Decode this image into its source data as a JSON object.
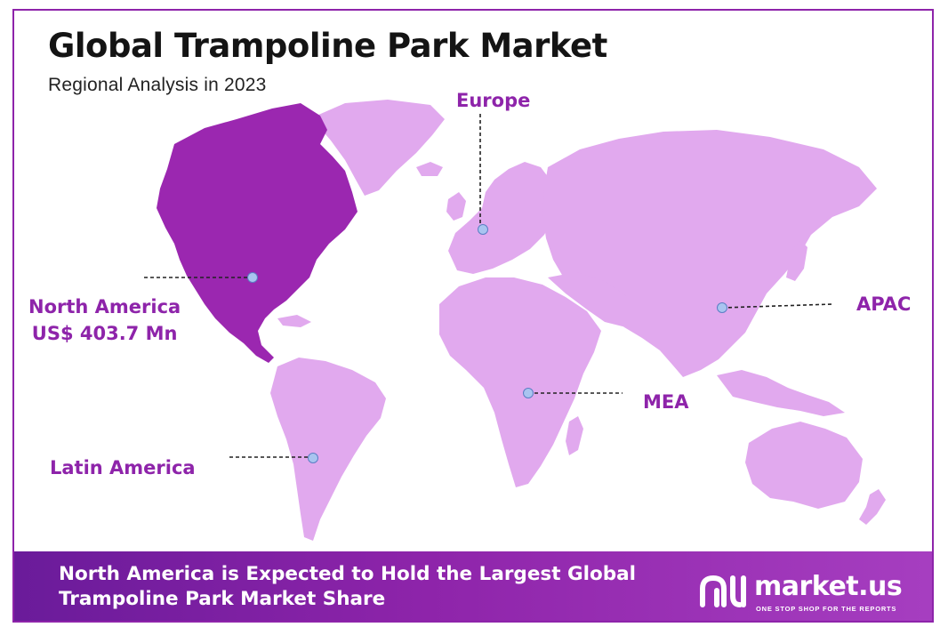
{
  "header": {
    "title": "Global Trampoline Park Market",
    "subtitle": "Regional Analysis in 2023"
  },
  "regions": {
    "north_america": {
      "name": "North America",
      "value": "US$ 403.7 Mn"
    },
    "europe": {
      "name": "Europe"
    },
    "apac": {
      "name": "APAC"
    },
    "mea": {
      "name": "MEA"
    },
    "latin_america": {
      "name": "Latin America"
    }
  },
  "colors": {
    "highlight": "#9b27b0",
    "land": "#e1a9ee",
    "accent": "#8e24aa",
    "marker": "#a9c4f0"
  },
  "banner": {
    "text": "North America is Expected to Hold the Largest Global Trampoline Park Market Share"
  },
  "brand": {
    "name": "market.us",
    "tagline": "ONE STOP SHOP FOR THE REPORTS",
    "icon": "market-us-logo-icon"
  }
}
